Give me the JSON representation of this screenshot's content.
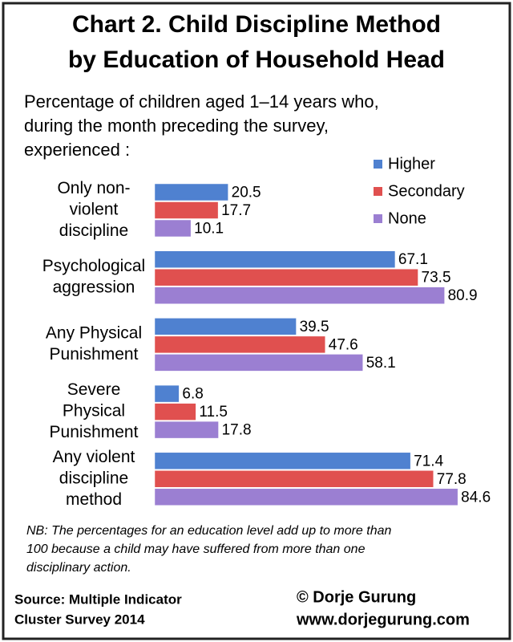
{
  "chart_data": {
    "type": "bar",
    "orientation": "horizontal",
    "title": [
      "Chart 2. Child Discipline Method",
      "by Education of Household Head"
    ],
    "subtitle": [
      "Percentage of children aged 1–14 years who,",
      "during the month preceding the survey,",
      "experienced :"
    ],
    "categories": [
      [
        "Only non-",
        "violent",
        "discipline"
      ],
      [
        "Psychological",
        "aggression"
      ],
      [
        "Any Physical",
        "Punishment"
      ],
      [
        "Severe",
        "Physical",
        "Punishment"
      ],
      [
        "Any violent",
        "discipline",
        "method"
      ]
    ],
    "series": [
      {
        "name": "Higher",
        "color": "#4f81d0",
        "values": [
          20.5,
          67.1,
          39.5,
          6.8,
          71.4
        ]
      },
      {
        "name": "Secondary",
        "color": "#e0504f",
        "values": [
          17.7,
          73.5,
          47.6,
          11.5,
          77.8
        ]
      },
      {
        "name": "None",
        "color": "#9b7fd2",
        "values": [
          10.1,
          80.9,
          58.1,
          17.8,
          84.6
        ]
      }
    ],
    "xlim": [
      0,
      100
    ],
    "legend": "top-right",
    "note": [
      "NB: The percentages for an education level add up to more than",
      "100 because a child may have suffered from more than one",
      "disciplinary action."
    ],
    "source": [
      "Source: Multiple Indicator",
      "Cluster Survey 2014"
    ],
    "credit": [
      "© Dorje Gurung",
      "www.dorjegurung.com"
    ]
  }
}
